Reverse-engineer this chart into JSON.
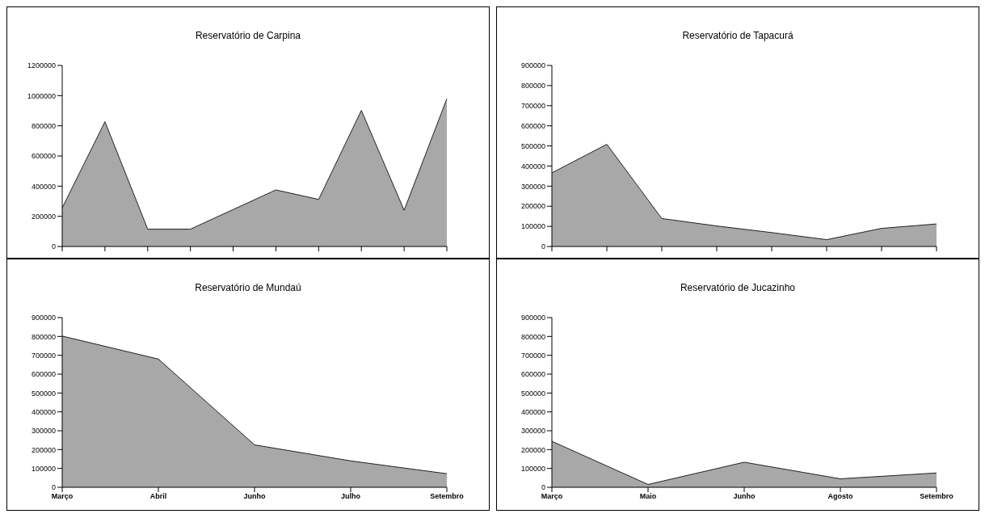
{
  "chart_data": [
    {
      "type": "area",
      "title": "Reservatório de Carpina",
      "categories": [
        null,
        null,
        null,
        null,
        null,
        null,
        null,
        null,
        null,
        null
      ],
      "values": [
        256000,
        827000,
        115000,
        115000,
        245000,
        375000,
        312000,
        902000,
        240000,
        979000
      ],
      "color": "#a8a8a8",
      "ylim": [
        0,
        1200000
      ],
      "yticks": [
        0,
        200000,
        400000,
        600000,
        800000,
        1000000,
        1200000
      ],
      "grid": false,
      "legend": false,
      "tick_labels": "y"
    },
    {
      "type": "area",
      "title": "Reservatório de Tapacurá",
      "categories": [
        null,
        null,
        null,
        null,
        null,
        null,
        null,
        null
      ],
      "values": [
        366000,
        508000,
        139000,
        102000,
        69000,
        34000,
        90000,
        112000
      ],
      "color": "#a8a8a8",
      "ylim": [
        0,
        900000
      ],
      "yticks": [
        0,
        100000,
        200000,
        300000,
        400000,
        500000,
        600000,
        700000,
        800000,
        900000
      ],
      "grid": false,
      "legend": false,
      "tick_labels": "y"
    },
    {
      "type": "area",
      "title": "Reservatório de Mundaú",
      "categories": [
        "Março",
        "Abril",
        "Junho",
        "Julho",
        "Setembro"
      ],
      "values": [
        802000,
        680000,
        225000,
        140000,
        72000
      ],
      "color": "#a8a8a8",
      "ylim": [
        0,
        900000
      ],
      "yticks": [
        0,
        100000,
        200000,
        300000,
        400000,
        500000,
        600000,
        700000,
        800000,
        900000
      ],
      "grid": false,
      "legend": false
    },
    {
      "type": "area",
      "title": "Reservatório de Jucazinho",
      "categories": [
        "Março",
        "Maio",
        "Junho",
        "Agosto",
        "Setembro"
      ],
      "values": [
        244000,
        15000,
        133000,
        45000,
        76000
      ],
      "color": "#a8a8a8",
      "ylim": [
        0,
        900000
      ],
      "yticks": [
        0,
        100000,
        200000,
        300000,
        400000,
        500000,
        600000,
        700000,
        800000,
        900000
      ],
      "grid": false,
      "legend": false
    }
  ]
}
